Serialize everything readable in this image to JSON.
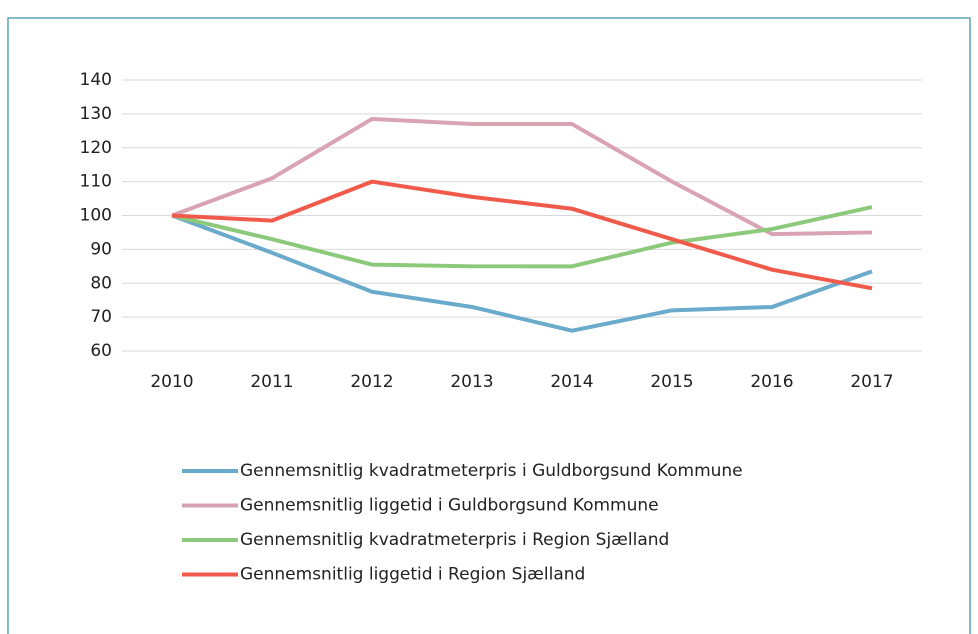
{
  "chart_data": {
    "type": "line",
    "categories": [
      "2010",
      "2011",
      "2012",
      "2013",
      "2014",
      "2015",
      "2016",
      "2017"
    ],
    "series": [
      {
        "name": "Gennemsnitlig kvadratmeterpris i Guldborgsund Kommune",
        "color": "#6aaacb",
        "values": [
          100,
          89,
          77.5,
          73,
          66,
          72,
          73,
          83.5
        ]
      },
      {
        "name": "Gennemsnitlig liggetid i Guldborgsund Kommune",
        "color": "#d9a3b3",
        "values": [
          100,
          111,
          128.5,
          127,
          127,
          110,
          94.5,
          95
        ]
      },
      {
        "name": "Gennemsnitlig kvadratmeterpris i Region Sjælland",
        "color": "#8cc97a",
        "values": [
          100,
          93,
          85.5,
          85,
          85,
          92,
          96,
          102.5
        ]
      },
      {
        "name": "Gennemsnitlig liggetid i Region Sjælland",
        "color": "#f05a4a",
        "values": [
          100,
          98.5,
          110,
          105.5,
          102,
          93,
          84,
          78.5
        ]
      }
    ],
    "ylim": [
      60,
      140
    ],
    "yticks": [
      60,
      70,
      80,
      90,
      100,
      110,
      120,
      130,
      140
    ],
    "grid": true,
    "legend": "bottom"
  }
}
